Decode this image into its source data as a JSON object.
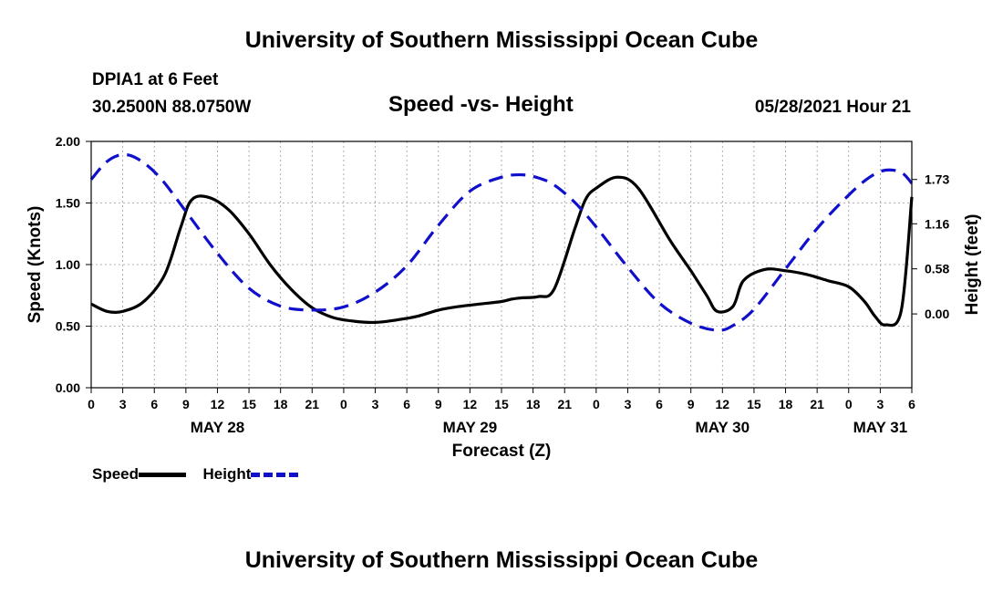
{
  "header": {
    "title": "University of Southern Mississippi Ocean Cube",
    "station": "DPIA1 at 6 Feet",
    "coords": "30.2500N  88.0750W",
    "subtitle": "Speed -vs- Height",
    "timestamp": "05/28/2021 Hour 21"
  },
  "footer": {
    "title": "University of Southern Mississippi Ocean Cube"
  },
  "legend": {
    "speed_label": "Speed",
    "height_label": "Height"
  },
  "colors": {
    "speed": "#000000",
    "height": "#1010cc",
    "grid": "#999999"
  },
  "chart_data": {
    "type": "line",
    "title": "Speed -vs- Height",
    "xlabel": "Forecast (Z)",
    "ylabel": "Speed (Knots)",
    "y2label": "Height (feet)",
    "x_unit": "hours since May 28 00Z",
    "xlim": [
      0,
      78
    ],
    "ylim": [
      0.0,
      2.0
    ],
    "y2lim": [
      -0.95,
      2.22
    ],
    "x_ticks": [
      0,
      3,
      6,
      9,
      12,
      15,
      18,
      21,
      24,
      27,
      30,
      33,
      36,
      39,
      42,
      45,
      48,
      51,
      54,
      57,
      60,
      63,
      66,
      69,
      72,
      75,
      78
    ],
    "x_tick_labels": [
      "0",
      "3",
      "6",
      "9",
      "12",
      "15",
      "18",
      "21",
      "0",
      "3",
      "6",
      "9",
      "12",
      "15",
      "18",
      "21",
      "0",
      "3",
      "6",
      "9",
      "12",
      "15",
      "18",
      "21",
      "0",
      "3",
      "6"
    ],
    "y_ticks": [
      0.0,
      0.5,
      1.0,
      1.5,
      2.0
    ],
    "y_tick_labels": [
      "0.00",
      "0.50",
      "1.00",
      "1.50",
      "2.00"
    ],
    "y2_ticks": [
      0.0,
      0.58,
      1.16,
      1.73
    ],
    "y2_tick_labels": [
      "0.00",
      "0.58",
      "1.16",
      "1.73"
    ],
    "date_labels": [
      {
        "x": 12,
        "label": "MAY 28"
      },
      {
        "x": 36,
        "label": "MAY 29"
      },
      {
        "x": 60,
        "label": "MAY 30"
      },
      {
        "x": 75,
        "label": "MAY 31"
      }
    ],
    "grid": true,
    "series": [
      {
        "name": "Speed",
        "axis": "left",
        "style": "solid",
        "x": [
          0,
          1.5,
          3,
          5,
          7,
          8.5,
          9.5,
          11,
          13,
          15,
          17,
          19,
          21,
          23,
          25,
          27,
          29,
          31,
          33,
          35,
          37,
          39,
          40,
          41,
          42.5,
          44,
          46,
          47,
          48,
          50,
          52,
          55,
          57,
          58.5,
          59.5,
          61,
          62,
          64,
          66,
          68,
          70,
          72,
          73.5,
          74.5,
          75.5,
          77,
          78
        ],
        "y": [
          0.68,
          0.62,
          0.62,
          0.7,
          0.92,
          1.3,
          1.52,
          1.55,
          1.45,
          1.25,
          1.0,
          0.8,
          0.65,
          0.57,
          0.54,
          0.53,
          0.55,
          0.58,
          0.63,
          0.66,
          0.68,
          0.7,
          0.72,
          0.73,
          0.74,
          0.8,
          1.3,
          1.53,
          1.62,
          1.71,
          1.62,
          1.2,
          0.95,
          0.75,
          0.62,
          0.66,
          0.87,
          0.96,
          0.95,
          0.92,
          0.87,
          0.82,
          0.7,
          0.58,
          0.51,
          0.63,
          1.55
        ]
      },
      {
        "name": "Height",
        "axis": "right",
        "style": "dashed",
        "x": [
          0,
          1.5,
          3,
          4.5,
          6.5,
          9,
          12,
          15,
          18,
          21,
          24,
          27,
          30,
          33,
          36,
          39,
          41,
          42.5,
          44,
          46,
          48,
          51,
          54,
          57,
          59.5,
          61,
          63,
          66,
          69,
          72,
          74,
          75.5,
          77,
          78
        ],
        "y": [
          1.73,
          1.96,
          2.05,
          1.99,
          1.76,
          1.32,
          0.78,
          0.33,
          0.1,
          0.05,
          0.09,
          0.28,
          0.62,
          1.14,
          1.58,
          1.76,
          1.79,
          1.75,
          1.66,
          1.43,
          1.12,
          0.6,
          0.14,
          -0.12,
          -0.21,
          -0.15,
          0.06,
          0.58,
          1.1,
          1.53,
          1.76,
          1.85,
          1.82,
          1.68
        ]
      }
    ]
  }
}
